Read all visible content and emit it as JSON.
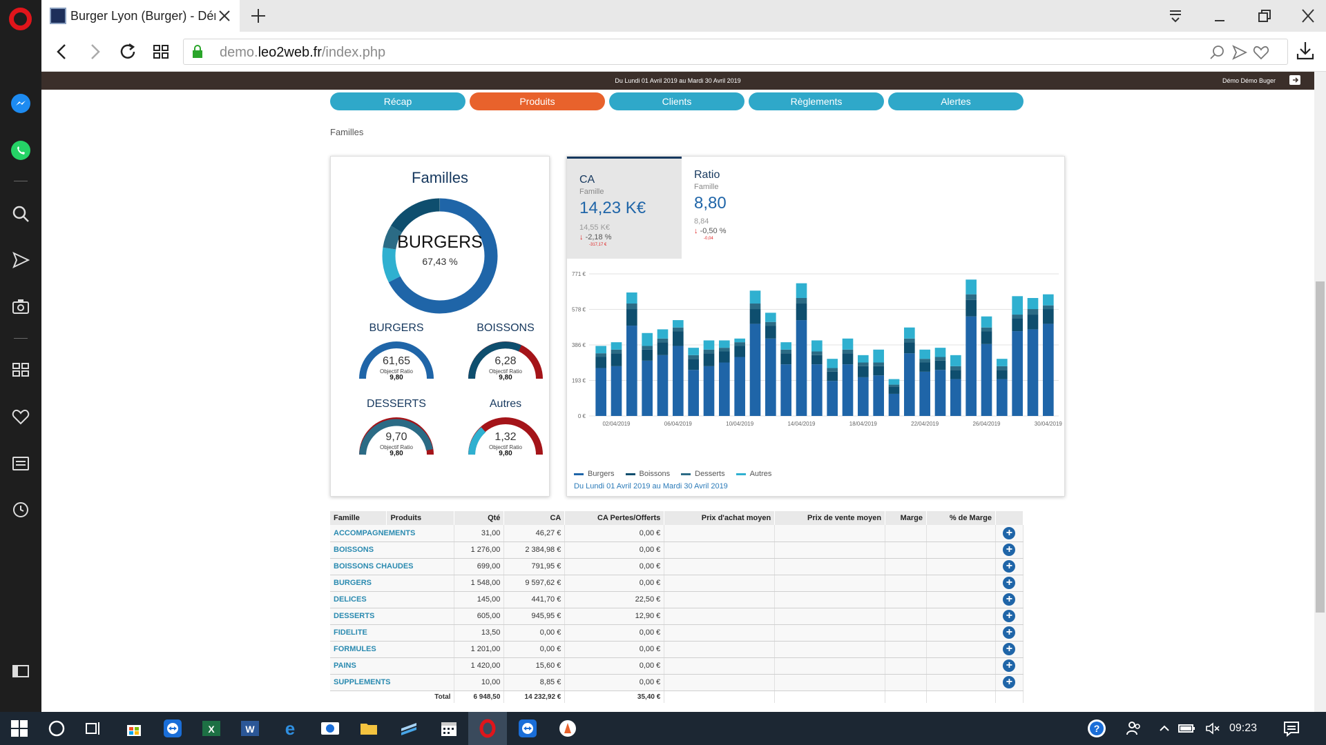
{
  "browser": {
    "tab_title": "Burger Lyon (Burger) - Démo",
    "url_prefix": "demo.",
    "url_domain": "leo2web.fr",
    "url_path": "/index.php"
  },
  "app": {
    "period_header": "Du Lundi 01 Avril 2019 au Mardi 30 Avril 2019",
    "user": "Démo Démo Buger",
    "menu": [
      "Récap",
      "Produits",
      "Clients",
      "Règlements",
      "Alertes"
    ],
    "active_menu": "Produits",
    "breadcrumb": "Familles"
  },
  "familles_card": {
    "title": "Familles",
    "donut": {
      "label": "BURGERS",
      "pct": "67,43 %",
      "share": 67.43
    },
    "gauges": [
      {
        "name": "BURGERS",
        "value": "61,65",
        "obj_label": "Objectif Ratio",
        "obj": "9,80",
        "color": "#1f65a8"
      },
      {
        "name": "BOISSONS",
        "value": "6,28",
        "obj_label": "Objectif Ratio",
        "obj": "9,80",
        "color": "#0e4e6e"
      },
      {
        "name": "DESSERTS",
        "value": "9,70",
        "obj_label": "Objectif Ratio",
        "obj": "9,80",
        "color": "#2b6b85"
      },
      {
        "name": "Autres",
        "value": "1,32",
        "obj_label": "Objectif Ratio",
        "obj": "9,80",
        "color": "#2fb0d0"
      }
    ]
  },
  "kpis": {
    "ca": {
      "title": "CA",
      "sub": "Famille",
      "value": "14,23 K€",
      "prev": "14,55 K€",
      "delta": "-2,18 %",
      "tiny": "-317,17 €"
    },
    "ratio": {
      "title": "Ratio",
      "sub": "Famille",
      "value": "8,80",
      "prev": "8,84",
      "delta": "-0,50 %",
      "tiny": "-0,04"
    }
  },
  "chart_data": {
    "type": "bar",
    "stacked": true,
    "ylim": [
      0,
      771
    ],
    "yticks": [
      "0 €",
      "193 €",
      "386 €",
      "578 €",
      "771 €"
    ],
    "xtick_labels": [
      "02/04/2019",
      "06/04/2019",
      "10/04/2019",
      "14/04/2019",
      "18/04/2019",
      "22/04/2019",
      "26/04/2019",
      "30/04/2019"
    ],
    "categories": [
      "01/04",
      "02/04",
      "03/04",
      "04/04",
      "05/04",
      "06/04",
      "07/04",
      "08/04",
      "09/04",
      "10/04",
      "11/04",
      "12/04",
      "13/04",
      "14/04",
      "15/04",
      "16/04",
      "17/04",
      "18/04",
      "19/04",
      "20/04",
      "21/04",
      "22/04",
      "23/04",
      "24/04",
      "25/04",
      "26/04",
      "27/04",
      "28/04",
      "29/04",
      "30/04"
    ],
    "series": [
      {
        "name": "Burgers",
        "color": "#1f65a8",
        "values": [
          260,
          270,
          490,
          300,
          330,
          380,
          250,
          270,
          290,
          320,
          500,
          420,
          280,
          520,
          280,
          190,
          280,
          210,
          220,
          120,
          340,
          240,
          250,
          200,
          540,
          390,
          200,
          460,
          470,
          500
        ]
      },
      {
        "name": "Boissons",
        "color": "#0e4e6e",
        "values": [
          60,
          70,
          90,
          60,
          70,
          80,
          60,
          70,
          60,
          60,
          80,
          70,
          60,
          90,
          50,
          50,
          60,
          60,
          50,
          40,
          60,
          50,
          50,
          50,
          90,
          70,
          50,
          70,
          80,
          80
        ]
      },
      {
        "name": "Desserts",
        "color": "#2b6b85",
        "values": [
          20,
          20,
          30,
          20,
          20,
          20,
          20,
          20,
          20,
          20,
          30,
          20,
          20,
          30,
          20,
          20,
          20,
          20,
          20,
          10,
          20,
          20,
          20,
          20,
          30,
          20,
          20,
          20,
          30,
          20
        ]
      },
      {
        "name": "Autres",
        "color": "#2fb0d0",
        "values": [
          40,
          40,
          60,
          70,
          50,
          40,
          40,
          50,
          40,
          20,
          70,
          50,
          40,
          80,
          60,
          50,
          60,
          40,
          70,
          30,
          60,
          50,
          50,
          60,
          80,
          60,
          40,
          100,
          60,
          60
        ]
      }
    ],
    "legend": [
      "Burgers",
      "Boissons",
      "Desserts",
      "Autres"
    ],
    "legend_position": "bottom-left",
    "period": "Du Lundi 01 Avril 2019 au Mardi 30 Avril 2019"
  },
  "table": {
    "headers": [
      "Famille",
      "Produits",
      "Qté",
      "CA",
      "CA Pertes/Offerts",
      "Prix d'achat moyen",
      "Prix de vente moyen",
      "Marge",
      "% de Marge"
    ],
    "rows": [
      {
        "famille": "ACCOMPAGNEMENTS",
        "qte": "31,00",
        "ca": "46,27 €",
        "pertes": "0,00 €"
      },
      {
        "famille": "BOISSONS",
        "qte": "1 276,00",
        "ca": "2 384,98 €",
        "pertes": "0,00 €"
      },
      {
        "famille": "BOISSONS CHAUDES",
        "qte": "699,00",
        "ca": "791,95 €",
        "pertes": "0,00 €"
      },
      {
        "famille": "BURGERS",
        "qte": "1 548,00",
        "ca": "9 597,62 €",
        "pertes": "0,00 €"
      },
      {
        "famille": "DELICES",
        "qte": "145,00",
        "ca": "441,70 €",
        "pertes": "22,50 €"
      },
      {
        "famille": "DESSERTS",
        "qte": "605,00",
        "ca": "945,95 €",
        "pertes": "12,90 €"
      },
      {
        "famille": "FIDELITE",
        "qte": "13,50",
        "ca": "0,00 €",
        "pertes": "0,00 €"
      },
      {
        "famille": "FORMULES",
        "qte": "1 201,00",
        "ca": "0,00 €",
        "pertes": "0,00 €"
      },
      {
        "famille": "PAINS",
        "qte": "1 420,00",
        "ca": "15,60 €",
        "pertes": "0,00 €"
      },
      {
        "famille": "SUPPLEMENTS",
        "qte": "10,00",
        "ca": "8,85 €",
        "pertes": "0,00 €"
      }
    ],
    "total": {
      "label": "Total",
      "qte": "6 948,50",
      "ca": "14 232,92 €",
      "pertes": "35,40 €"
    }
  },
  "taskbar": {
    "clock": "09:23"
  }
}
